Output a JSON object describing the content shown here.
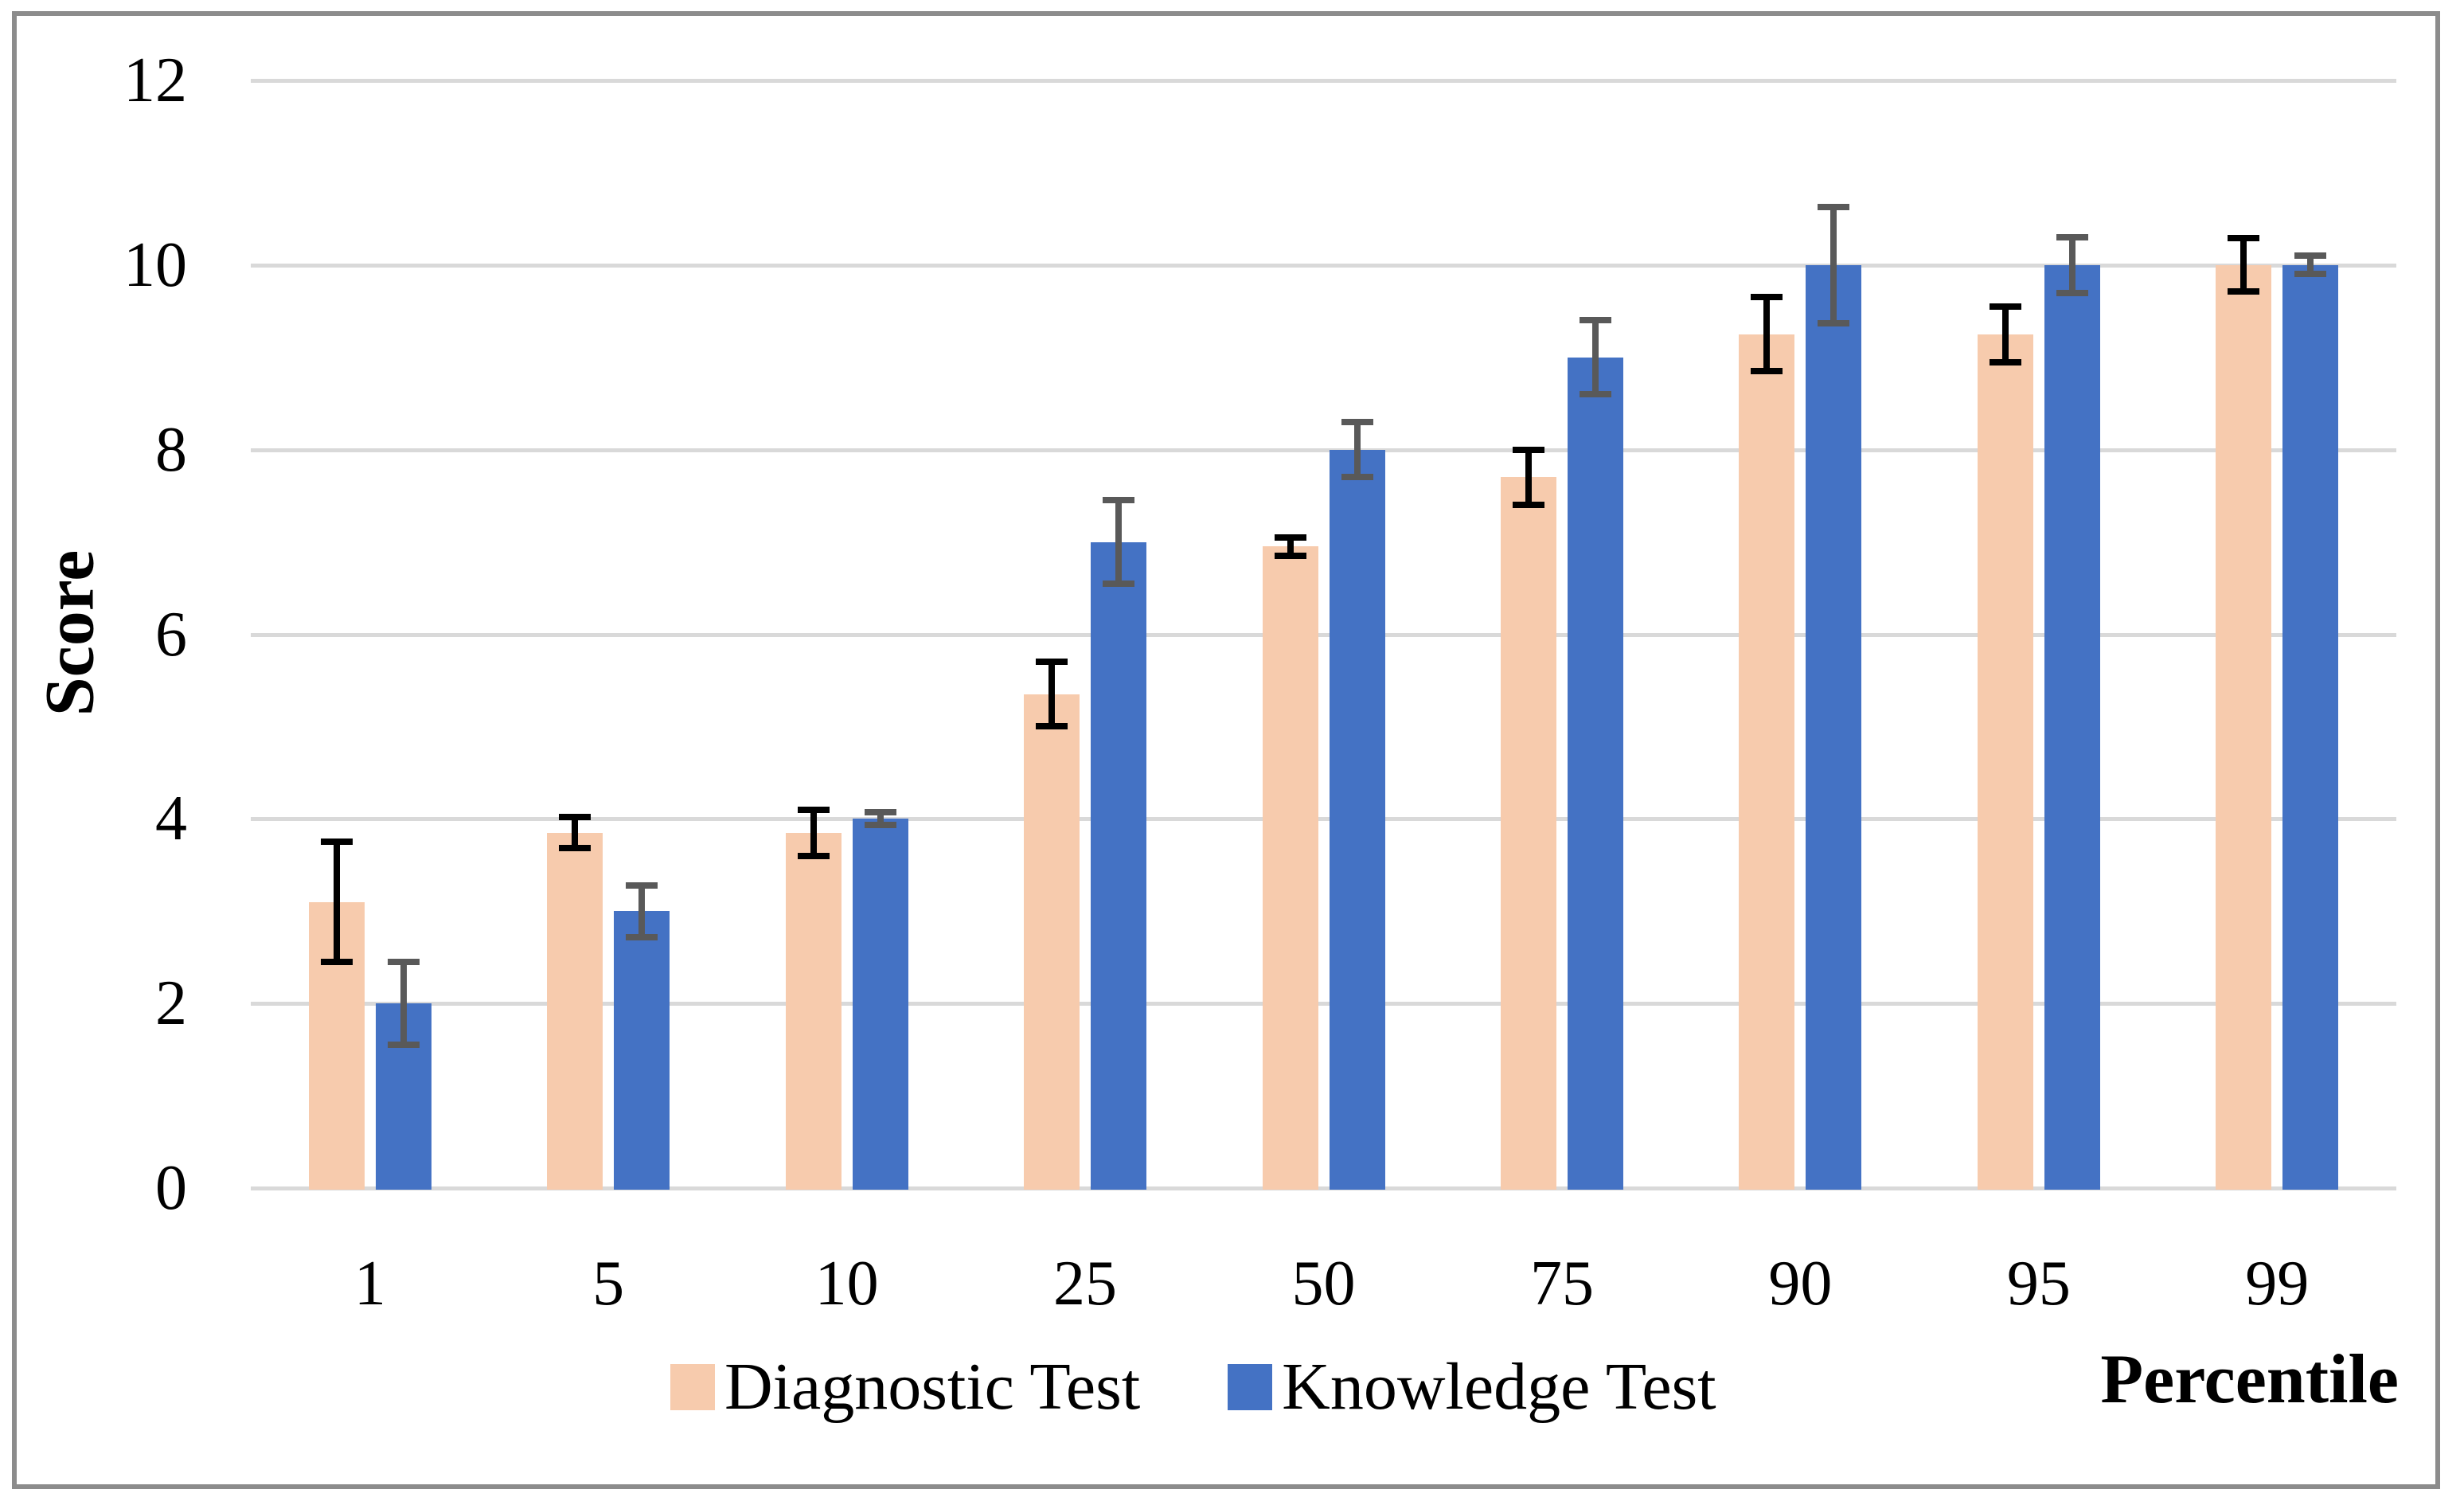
{
  "figure": {
    "y_axis_title": "Score",
    "x_axis_title": "Percentile"
  },
  "chart_data": {
    "type": "bar",
    "title": "",
    "xlabel": "Percentile",
    "ylabel": "Score",
    "ylim": [
      0,
      12
    ],
    "ytick_step": 2,
    "yticks": [
      0,
      2,
      4,
      6,
      8,
      10,
      12
    ],
    "grid": true,
    "legend_position": "bottom",
    "gridline_color": "#D9D9D9",
    "frame_color": "#8C8C8C",
    "categories": [
      "1",
      "5",
      "10",
      "25",
      "50",
      "75",
      "90",
      "95",
      "99"
    ],
    "series": [
      {
        "name": "Diagnostic Test",
        "color": "#F7CBAD",
        "error_color": "#000000",
        "values": [
          3.1,
          3.85,
          3.85,
          5.35,
          6.95,
          7.7,
          9.25,
          9.25,
          10.0
        ],
        "errors": [
          0.65,
          0.17,
          0.25,
          0.35,
          0.1,
          0.3,
          0.4,
          0.3,
          0.29
        ]
      },
      {
        "name": "Knowledge Test",
        "color": "#4472C4",
        "error_color": "#595959",
        "values": [
          2.0,
          3.0,
          4.0,
          7.0,
          8.0,
          9.0,
          10.0,
          10.0,
          10.0
        ],
        "errors": [
          0.45,
          0.28,
          0.07,
          0.45,
          0.3,
          0.4,
          0.63,
          0.3,
          0.1
        ]
      }
    ]
  }
}
